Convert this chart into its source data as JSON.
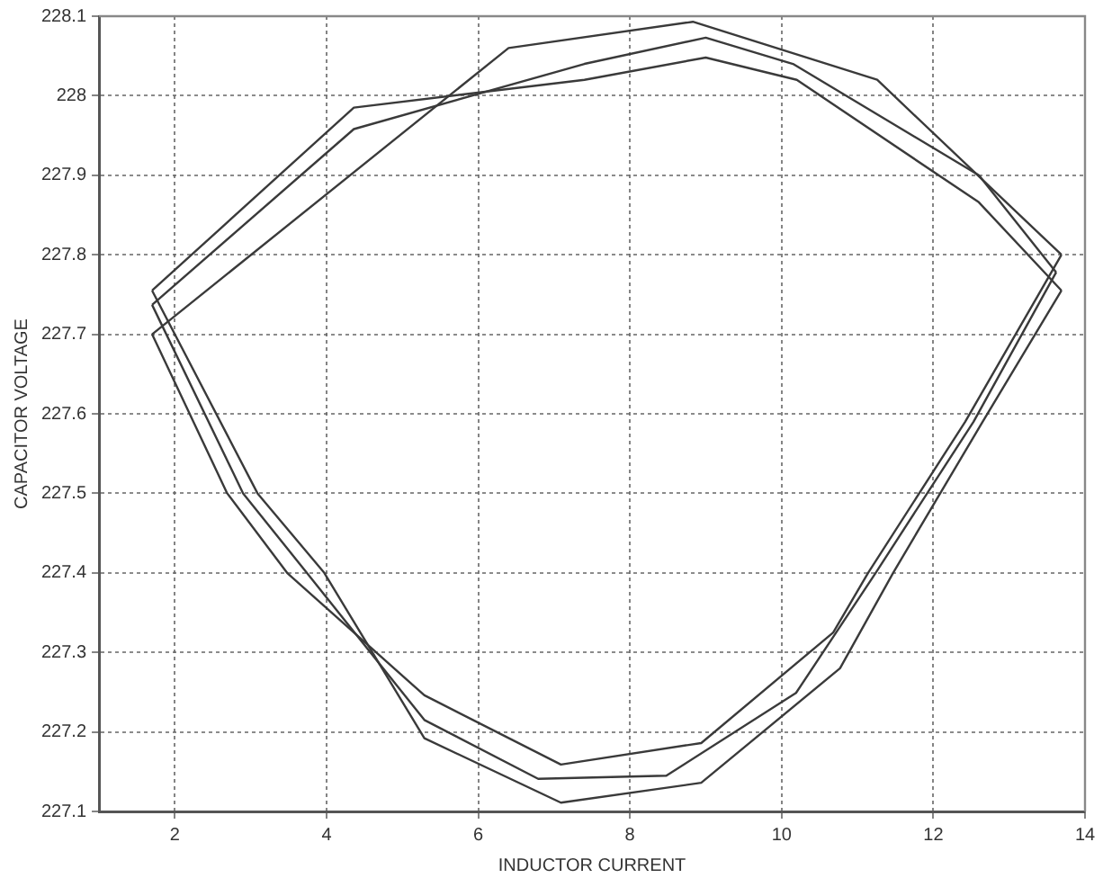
{
  "chart_data": {
    "type": "line",
    "xlabel": "INDUCTOR CURRENT",
    "ylabel": "CAPACITOR VOLTAGE",
    "xlim": [
      1,
      14
    ],
    "xticks": [
      2,
      4,
      6,
      8,
      10,
      12,
      14
    ],
    "ylim": [
      227.1,
      228.1
    ],
    "yticks": [
      227.1,
      227.2,
      227.3,
      227.4,
      227.5,
      227.6,
      227.7,
      227.8,
      227.9,
      228,
      228.1
    ],
    "grid": true,
    "legend": false,
    "marker": "none",
    "line_style": "solid",
    "series": [
      {
        "color": "#3a3a3a",
        "x": [
          1.7,
          4.36,
          7.4,
          9.0,
          10.2,
          12.6,
          13.69
        ],
        "values": [
          227.755,
          227.985,
          228.02,
          228.048,
          228.02,
          227.866,
          227.755
        ]
      },
      {
        "color": "#3a3a3a",
        "x": [
          1.7,
          3.09,
          3.97,
          5.29,
          7.09,
          8.94,
          10.77,
          11.47,
          12.65,
          13.69
        ],
        "values": [
          227.755,
          227.5,
          227.4,
          227.192,
          227.111,
          227.136,
          227.28,
          227.4,
          227.59,
          227.755
        ]
      },
      {
        "color": "#3a3a3a",
        "x": [
          1.7,
          4.36,
          7.4,
          9.0,
          10.15,
          12.6,
          13.62
        ],
        "values": [
          227.737,
          227.958,
          228.04,
          228.073,
          228.04,
          227.9,
          227.778
        ]
      },
      {
        "color": "#3a3a3a",
        "x": [
          1.7,
          2.9,
          3.74,
          5.29,
          6.79,
          8.48,
          10.19,
          11.24,
          12.53,
          13.62
        ],
        "values": [
          227.737,
          227.5,
          227.4,
          227.215,
          227.141,
          227.145,
          227.249,
          227.4,
          227.59,
          227.778
        ]
      },
      {
        "color": "#3a3a3a",
        "x": [
          1.7,
          6.4,
          8.83,
          11.26,
          13.69
        ],
        "values": [
          227.7,
          228.06,
          228.093,
          228.02,
          227.8
        ]
      },
      {
        "color": "#3a3a3a",
        "x": [
          1.7,
          2.69,
          3.48,
          5.29,
          7.09,
          8.94,
          10.68,
          11.14,
          12.42,
          13.69
        ],
        "values": [
          227.7,
          227.5,
          227.4,
          227.246,
          227.159,
          227.186,
          227.325,
          227.4,
          227.59,
          227.8
        ]
      }
    ]
  }
}
